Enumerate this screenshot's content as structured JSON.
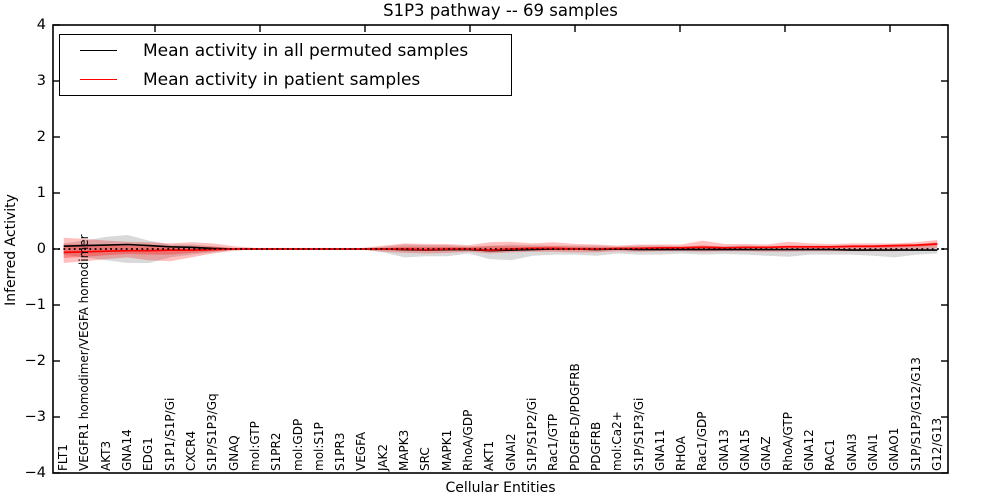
{
  "chart_data": {
    "type": "line",
    "title": "S1P3 pathway -- 69 samples",
    "xlabel": "Cellular Entities",
    "ylabel": "Inferred Activity",
    "ylim": [
      -4,
      4
    ],
    "yticks": [
      4,
      3,
      2,
      1,
      0,
      -1,
      -2,
      -3,
      -4
    ],
    "grid": false,
    "legend_position": "upper left",
    "zero_line": {
      "style": "dotted",
      "color": "#000000",
      "y": 0
    },
    "categories": [
      "FLT1",
      "VEGFR1 homodimer/VEGFA homodimer",
      "AKT3",
      "GNA14",
      "EDG1",
      "S1P1/S1P/Gi",
      "CXCR4",
      "S1P/S1P3/Gq",
      "GNAQ",
      "mol:GTP",
      "S1PR2",
      "mol:GDP",
      "mol:S1P",
      "S1PR3",
      "VEGFA",
      "JAK2",
      "MAPK3",
      "SRC",
      "MAPK1",
      "RhoA/GDP",
      "AKT1",
      "GNAI2",
      "S1P/S1P2/Gi",
      "Rac1/GTP",
      "PDGFB-D/PDGFRB",
      "PDGFRB",
      "mol:Ca2+",
      "S1P/S1P3/Gi",
      "GNA11",
      "RHOA",
      "Rac1/GDP",
      "GNA13",
      "GNA15",
      "GNAZ",
      "RhoA/GTP",
      "GNA12",
      "RAC1",
      "GNAI3",
      "GNAI1",
      "GNAO1",
      "S1P/S1P3/G12/G13",
      "G12/G13"
    ],
    "series": [
      {
        "name": "Mean activity in all permuted samples",
        "color": "#000000",
        "band_color": "#888888",
        "values": [
          0.05,
          0.06,
          0.07,
          0.08,
          0.06,
          0.04,
          0.03,
          0.01,
          0.0,
          0.0,
          0.0,
          0.0,
          0.0,
          0.0,
          0.0,
          0.0,
          -0.01,
          -0.02,
          -0.01,
          -0.01,
          -0.03,
          -0.02,
          -0.01,
          0.0,
          0.0,
          -0.01,
          0.0,
          -0.01,
          -0.01,
          -0.01,
          -0.01,
          -0.01,
          -0.01,
          -0.01,
          -0.01,
          -0.01,
          -0.01,
          -0.02,
          -0.02,
          -0.02,
          -0.02,
          -0.02
        ],
        "band_upper": [
          0.1,
          0.15,
          0.22,
          0.25,
          0.15,
          0.08,
          0.08,
          0.05,
          0.02,
          0.01,
          0.01,
          0.01,
          0.01,
          0.01,
          0.01,
          0.04,
          0.08,
          0.07,
          0.07,
          0.05,
          0.06,
          0.08,
          0.07,
          0.06,
          0.06,
          0.06,
          0.04,
          0.06,
          0.06,
          0.05,
          0.06,
          0.05,
          0.06,
          0.05,
          0.06,
          0.06,
          0.06,
          0.06,
          0.07,
          0.08,
          0.07,
          0.06
        ],
        "band_lower": [
          -0.1,
          -0.15,
          -0.2,
          -0.25,
          -0.25,
          -0.15,
          -0.1,
          -0.06,
          -0.02,
          -0.01,
          -0.01,
          -0.01,
          -0.01,
          -0.01,
          -0.01,
          -0.06,
          -0.15,
          -0.13,
          -0.13,
          -0.08,
          -0.18,
          -0.2,
          -0.12,
          -0.1,
          -0.1,
          -0.12,
          -0.08,
          -0.1,
          -0.1,
          -0.08,
          -0.1,
          -0.09,
          -0.1,
          -0.12,
          -0.14,
          -0.1,
          -0.1,
          -0.1,
          -0.12,
          -0.15,
          -0.1,
          -0.08
        ]
      },
      {
        "name": "Mean activity in patient samples",
        "color": "#ff0000",
        "band_color": "#ff0000",
        "values": [
          -0.06,
          -0.05,
          -0.04,
          -0.03,
          -0.03,
          -0.02,
          -0.02,
          -0.01,
          0.0,
          0.0,
          0.0,
          0.0,
          0.0,
          0.0,
          0.0,
          0.0,
          0.0,
          -0.01,
          0.0,
          0.0,
          -0.02,
          0.0,
          0.01,
          0.01,
          0.0,
          0.0,
          0.01,
          0.01,
          0.02,
          0.02,
          0.03,
          0.02,
          0.03,
          0.03,
          0.04,
          0.04,
          0.04,
          0.05,
          0.05,
          0.06,
          0.07,
          0.09
        ],
        "band_upper": [
          0.2,
          0.18,
          0.15,
          0.13,
          0.12,
          0.1,
          0.12,
          0.1,
          0.05,
          0.02,
          0.02,
          0.02,
          0.02,
          0.02,
          0.02,
          0.06,
          0.1,
          0.09,
          0.09,
          0.07,
          0.12,
          0.13,
          0.1,
          0.12,
          0.09,
          0.08,
          0.06,
          0.08,
          0.08,
          0.08,
          0.15,
          0.09,
          0.09,
          0.08,
          0.13,
          0.1,
          0.09,
          0.1,
          0.1,
          0.1,
          0.12,
          0.16
        ],
        "band_lower": [
          -0.25,
          -0.22,
          -0.18,
          -0.15,
          -0.2,
          -0.22,
          -0.15,
          -0.08,
          -0.03,
          -0.01,
          -0.01,
          -0.01,
          -0.01,
          -0.01,
          -0.01,
          -0.05,
          -0.07,
          -0.08,
          -0.07,
          -0.05,
          -0.08,
          -0.06,
          -0.05,
          -0.05,
          -0.06,
          -0.06,
          -0.04,
          -0.05,
          -0.04,
          -0.04,
          -0.05,
          -0.04,
          -0.04,
          -0.05,
          -0.05,
          -0.04,
          -0.04,
          -0.04,
          -0.04,
          -0.04,
          -0.02,
          0.02
        ],
        "inner_upper": [
          0.08,
          0.08,
          0.07,
          0.06,
          0.05,
          0.04,
          0.05,
          0.04,
          0.01,
          0.01,
          0.01,
          0.01,
          0.01,
          0.01,
          0.01,
          0.02,
          0.04,
          0.04,
          0.04,
          0.03,
          0.05,
          0.05,
          0.04,
          0.05,
          0.04,
          0.03,
          0.02,
          0.03,
          0.04,
          0.04,
          0.06,
          0.04,
          0.04,
          0.04,
          0.06,
          0.05,
          0.05,
          0.05,
          0.06,
          0.06,
          0.08,
          0.12
        ],
        "inner_lower": [
          -0.16,
          -0.14,
          -0.11,
          -0.09,
          -0.1,
          -0.1,
          -0.07,
          -0.04,
          -0.01,
          -0.01,
          -0.01,
          -0.01,
          -0.01,
          -0.01,
          -0.01,
          -0.02,
          -0.03,
          -0.03,
          -0.03,
          -0.02,
          -0.04,
          -0.03,
          -0.02,
          -0.02,
          -0.02,
          -0.02,
          -0.01,
          -0.01,
          0.0,
          0.0,
          0.01,
          0.0,
          0.01,
          0.01,
          0.02,
          0.01,
          0.01,
          0.02,
          0.02,
          0.03,
          0.04,
          0.06
        ]
      }
    ]
  }
}
